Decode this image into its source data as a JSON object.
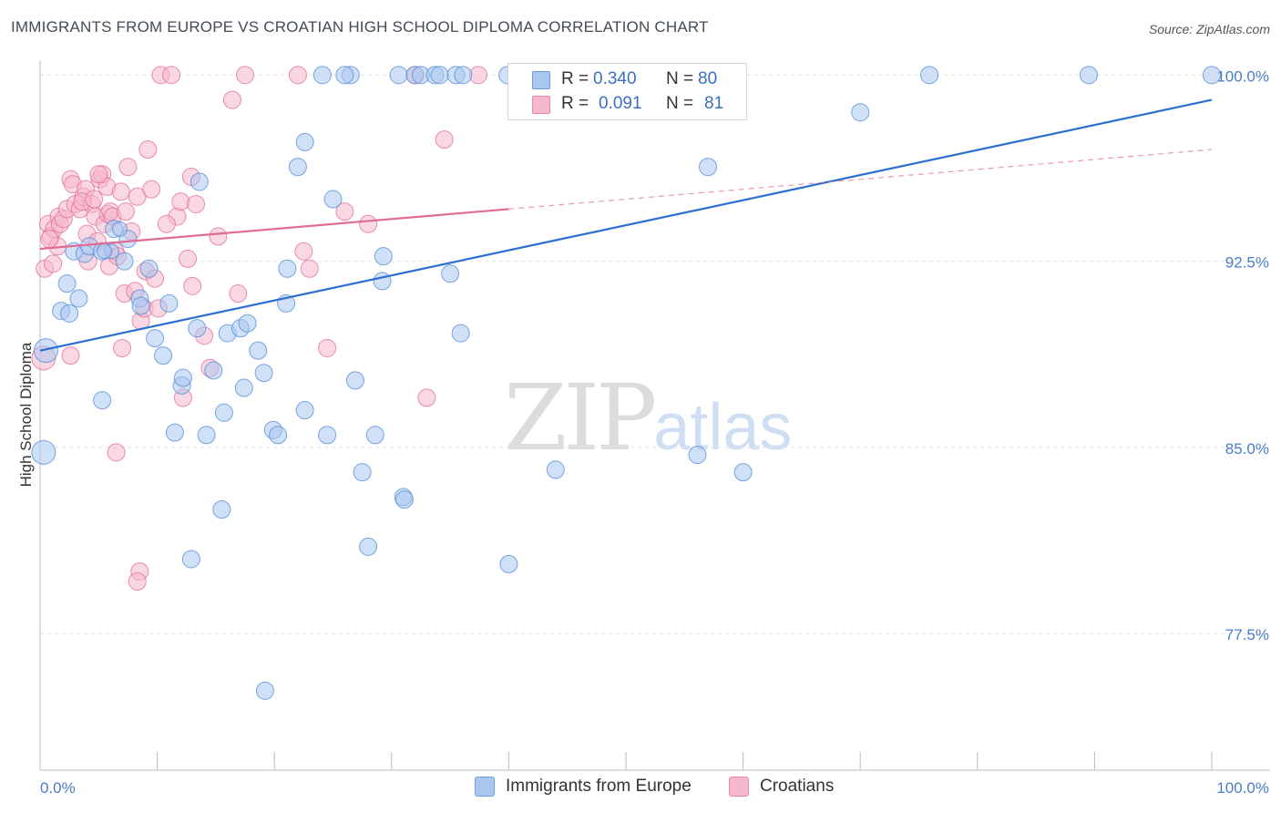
{
  "title": "IMMIGRANTS FROM EUROPE VS CROATIAN HIGH SCHOOL DIPLOMA CORRELATION CHART",
  "source": "Source: ZipAtlas.com",
  "watermark": {
    "zip": "ZIP",
    "atlas": "atlas"
  },
  "legend": {
    "rows": [
      {
        "label": "R =",
        "r": "0.340",
        "n_label": "N =",
        "n": "80",
        "color": "#a9c7ee",
        "border": "#6d9ee0"
      },
      {
        "label": "R =",
        "r": "0.091",
        "n_label": "N =",
        "n": "81",
        "color": "#f6b8cc",
        "border": "#ea87a6"
      }
    ]
  },
  "bottom_legend": [
    "Immigrants from Europe",
    "Croatians"
  ],
  "chart_data": {
    "type": "scatter",
    "xlabel": "",
    "ylabel": "High School Diploma",
    "xlim": [
      0,
      100
    ],
    "ylim": [
      72,
      100.6
    ],
    "x_tick_labels": [
      "0.0%",
      "100.0%"
    ],
    "y_ticks": [
      77.5,
      85.0,
      92.5,
      100.0
    ],
    "y_tick_labels": [
      "77.5%",
      "85.0%",
      "92.5%",
      "100.0%"
    ],
    "colors": {
      "europe": "#4f8ad8",
      "europe_fill": "#a9c7ee",
      "croatians": "#e06b95",
      "croatians_fill": "#f6b8cc",
      "axis_label": "#4a7cc8"
    },
    "series": [
      {
        "name": "Immigrants from Europe",
        "trend": {
          "x": [
            0,
            100
          ],
          "y": [
            88.9,
            99.0
          ],
          "dashed_from": null
        },
        "points": [
          [
            0.5,
            88.9,
            3
          ],
          [
            0.3,
            84.8,
            3
          ],
          [
            1.8,
            90.5,
            2
          ],
          [
            2.3,
            91.6,
            2
          ],
          [
            2.5,
            90.4,
            2
          ],
          [
            3.3,
            91.0,
            2
          ],
          [
            2.9,
            92.9,
            2
          ],
          [
            3.8,
            92.8,
            2
          ],
          [
            4.2,
            93.1,
            2
          ],
          [
            5.3,
            92.9,
            2
          ],
          [
            6.3,
            93.8,
            2
          ],
          [
            7.5,
            93.4,
            2
          ],
          [
            7.2,
            92.5,
            2
          ],
          [
            6.1,
            92.9,
            1
          ],
          [
            5.3,
            86.9,
            2
          ],
          [
            8.5,
            91.0,
            2
          ],
          [
            8.6,
            90.7,
            2
          ],
          [
            9.3,
            92.2,
            2
          ],
          [
            9.8,
            89.4,
            2
          ],
          [
            10.5,
            88.7,
            2
          ],
          [
            11.0,
            90.8,
            2
          ],
          [
            12.1,
            87.5,
            2
          ],
          [
            12.2,
            87.8,
            2
          ],
          [
            13.4,
            89.8,
            2
          ],
          [
            11.5,
            85.6,
            2
          ],
          [
            14.2,
            85.5,
            2
          ],
          [
            13.6,
            95.7,
            2
          ],
          [
            14.8,
            88.1,
            2
          ],
          [
            15.7,
            86.4,
            2
          ],
          [
            15.5,
            82.5,
            2
          ],
          [
            16.0,
            89.6,
            2
          ],
          [
            17.1,
            89.8,
            2
          ],
          [
            17.4,
            87.4,
            2
          ],
          [
            17.7,
            90.0,
            2
          ],
          [
            18.6,
            88.9,
            2
          ],
          [
            19.1,
            88.0,
            2
          ],
          [
            19.9,
            85.7,
            2
          ],
          [
            20.3,
            85.5,
            2
          ],
          [
            21.0,
            90.8,
            2
          ],
          [
            21.1,
            92.2,
            2
          ],
          [
            22.0,
            96.3,
            2
          ],
          [
            22.6,
            97.3,
            2
          ],
          [
            22.6,
            86.5,
            2
          ],
          [
            24.5,
            85.5,
            2
          ],
          [
            25.0,
            95.0,
            2
          ],
          [
            26.5,
            100.0,
            2
          ],
          [
            26.9,
            87.7,
            2
          ],
          [
            27.5,
            84.0,
            2
          ],
          [
            28.0,
            81.0,
            2
          ],
          [
            28.6,
            85.5,
            2
          ],
          [
            29.2,
            91.7,
            2
          ],
          [
            29.3,
            92.7,
            2
          ],
          [
            30.6,
            100.0,
            2
          ],
          [
            31.0,
            83.0,
            2
          ],
          [
            31.1,
            82.9,
            2
          ],
          [
            32.0,
            100.0,
            2
          ],
          [
            32.5,
            100.0,
            2
          ],
          [
            33.7,
            100.0,
            2
          ],
          [
            34.1,
            100.0,
            2
          ],
          [
            35.0,
            92.0,
            2
          ],
          [
            35.5,
            100.0,
            2
          ],
          [
            36.1,
            100.0,
            2
          ],
          [
            35.9,
            89.6,
            2
          ],
          [
            39.9,
            100.0,
            2
          ],
          [
            40.0,
            80.3,
            2
          ],
          [
            44.0,
            84.1,
            2
          ],
          [
            24.1,
            100.0,
            2
          ],
          [
            26.0,
            100.0,
            2
          ],
          [
            19.2,
            75.2,
            2
          ],
          [
            12.9,
            80.5,
            2
          ],
          [
            5.5,
            92.9,
            1
          ],
          [
            6.8,
            93.8,
            1
          ],
          [
            47.5,
            100.0,
            2
          ],
          [
            56.1,
            84.7,
            2
          ],
          [
            57.0,
            96.3,
            2
          ],
          [
            60.0,
            84.0,
            2
          ],
          [
            70.0,
            98.5,
            2
          ],
          [
            75.9,
            100.0,
            2
          ],
          [
            89.5,
            100.0,
            2
          ],
          [
            100.0,
            100.0,
            2
          ]
        ]
      },
      {
        "name": "Croatians",
        "trend": {
          "x": [
            0,
            100
          ],
          "y": [
            93.0,
            97.0
          ],
          "dashed_from": 40
        },
        "points": [
          [
            0.3,
            88.6,
            3
          ],
          [
            0.4,
            92.2,
            2
          ],
          [
            0.7,
            94.0,
            2
          ],
          [
            0.9,
            93.5,
            2
          ],
          [
            1.2,
            93.8,
            2
          ],
          [
            1.6,
            94.3,
            2
          ],
          [
            1.5,
            93.1,
            2
          ],
          [
            1.7,
            94.0,
            2
          ],
          [
            2.0,
            94.2,
            2
          ],
          [
            2.3,
            94.6,
            2
          ],
          [
            2.6,
            95.8,
            2
          ],
          [
            2.8,
            95.6,
            2
          ],
          [
            3.0,
            94.8,
            2
          ],
          [
            3.4,
            94.6,
            2
          ],
          [
            3.7,
            95.1,
            2
          ],
          [
            3.9,
            95.4,
            2
          ],
          [
            4.0,
            93.6,
            2
          ],
          [
            4.1,
            92.5,
            2
          ],
          [
            4.4,
            94.8,
            2
          ],
          [
            4.7,
            94.3,
            2
          ],
          [
            4.9,
            93.3,
            2
          ],
          [
            5.1,
            95.8,
            2
          ],
          [
            5.3,
            96.0,
            2
          ],
          [
            5.5,
            94.0,
            2
          ],
          [
            5.7,
            95.5,
            2
          ],
          [
            5.8,
            94.4,
            2
          ],
          [
            5.9,
            92.3,
            2
          ],
          [
            6.0,
            94.5,
            2
          ],
          [
            6.2,
            94.3,
            2
          ],
          [
            6.4,
            92.9,
            2
          ],
          [
            6.6,
            92.7,
            2
          ],
          [
            6.9,
            95.3,
            2
          ],
          [
            7.0,
            89.0,
            2
          ],
          [
            7.2,
            91.2,
            2
          ],
          [
            7.5,
            96.3,
            2
          ],
          [
            7.8,
            93.7,
            2
          ],
          [
            8.1,
            91.3,
            2
          ],
          [
            8.3,
            95.1,
            2
          ],
          [
            8.6,
            90.1,
            2
          ],
          [
            8.9,
            90.6,
            2
          ],
          [
            9.0,
            92.1,
            2
          ],
          [
            9.2,
            97.0,
            2
          ],
          [
            9.5,
            95.4,
            2
          ],
          [
            9.8,
            91.8,
            2
          ],
          [
            10.1,
            90.6,
            2
          ],
          [
            10.3,
            100.0,
            2
          ],
          [
            11.2,
            100.0,
            2
          ],
          [
            11.7,
            94.3,
            2
          ],
          [
            12.0,
            94.9,
            2
          ],
          [
            12.2,
            87.0,
            2
          ],
          [
            12.6,
            92.6,
            2
          ],
          [
            12.9,
            95.9,
            2
          ],
          [
            13.0,
            91.5,
            2
          ],
          [
            13.3,
            94.8,
            2
          ],
          [
            14.5,
            88.2,
            2
          ],
          [
            15.2,
            93.5,
            2
          ],
          [
            16.4,
            99.0,
            2
          ],
          [
            16.9,
            91.2,
            2
          ],
          [
            17.5,
            100.0,
            2
          ],
          [
            22.0,
            100.0,
            2
          ],
          [
            22.5,
            92.9,
            2
          ],
          [
            23.0,
            92.2,
            2
          ],
          [
            24.5,
            89.0,
            2
          ],
          [
            26.0,
            94.5,
            2
          ],
          [
            28.0,
            94.0,
            2
          ],
          [
            32.0,
            100.0,
            2
          ],
          [
            33.0,
            87.0,
            2
          ],
          [
            34.5,
            97.4,
            2
          ],
          [
            37.4,
            100.0,
            2
          ],
          [
            8.5,
            80.0,
            2
          ],
          [
            8.3,
            79.6,
            2
          ],
          [
            6.5,
            84.8,
            2
          ],
          [
            2.6,
            88.7,
            2
          ],
          [
            0.8,
            93.4,
            2
          ],
          [
            1.1,
            92.4,
            2
          ],
          [
            3.6,
            94.9,
            2
          ],
          [
            4.6,
            95.0,
            2
          ],
          [
            5.0,
            96.0,
            2
          ],
          [
            7.3,
            94.5,
            2
          ],
          [
            10.8,
            94.0,
            2
          ],
          [
            14.0,
            89.5,
            2
          ]
        ]
      }
    ]
  }
}
